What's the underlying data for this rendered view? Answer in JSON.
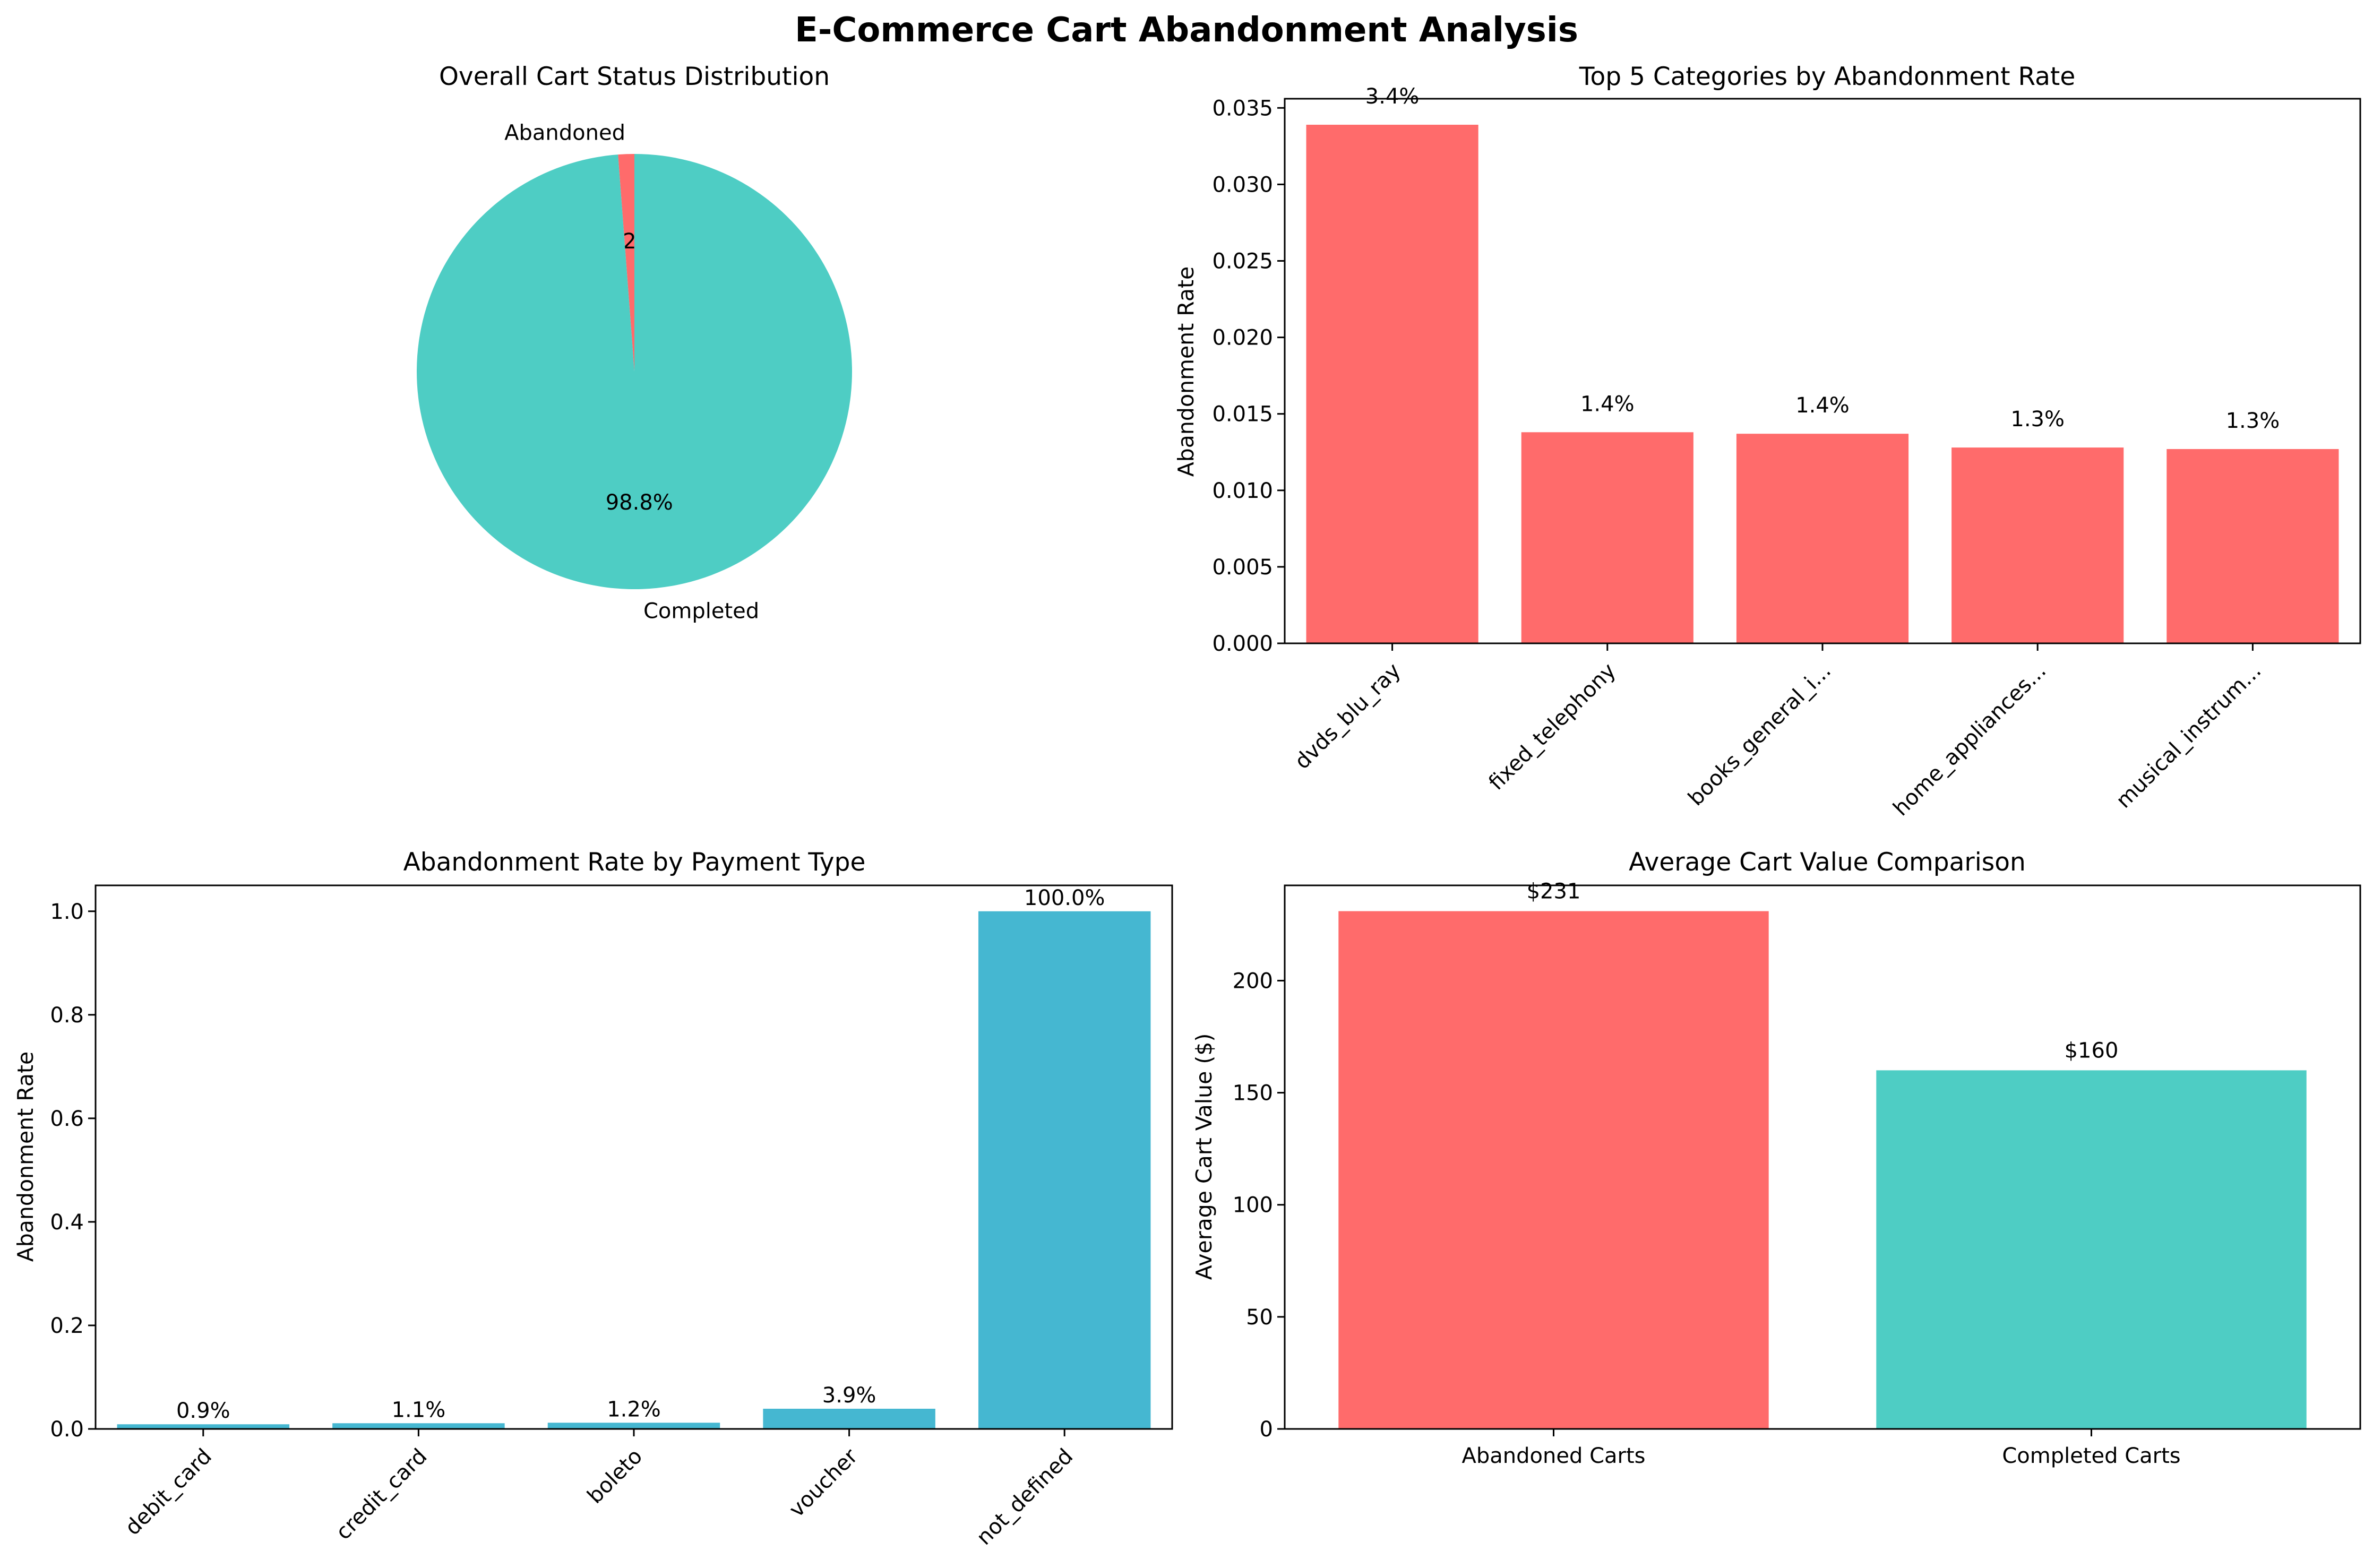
{
  "figure": {
    "title": "E-Commerce Cart Abandonment Analysis"
  },
  "chart_data": [
    {
      "type": "pie",
      "title": "Overall Cart Status Distribution",
      "labels": [
        "Abandoned",
        "Completed"
      ],
      "values": [
        1.2,
        98.8
      ],
      "value_labels": [
        "1.2%",
        "98.8%"
      ],
      "colors": [
        "#ff6b6b",
        "#4ecdc4"
      ],
      "start_angle": 90
    },
    {
      "type": "bar",
      "title": "Top 5 Categories by Abandonment Rate",
      "xlabel": "",
      "ylabel": "Abandonment Rate",
      "categories": [
        "dvds_blu_ray",
        "fixed_telephony",
        "books_general_i...",
        "home_appliances...",
        "musical_instrum..."
      ],
      "values": [
        0.0339,
        0.0138,
        0.0137,
        0.0128,
        0.0127
      ],
      "value_labels": [
        "3.4%",
        "1.4%",
        "1.4%",
        "1.3%",
        "1.3%"
      ],
      "ylim": [
        0,
        0.0356
      ],
      "yticks": [
        0.0,
        0.005,
        0.01,
        0.015,
        0.02,
        0.025,
        0.03,
        0.035
      ],
      "ytick_labels": [
        "0.000",
        "0.005",
        "0.010",
        "0.015",
        "0.020",
        "0.025",
        "0.030",
        "0.035"
      ],
      "color": "#ff6b6b",
      "grid": false
    },
    {
      "type": "bar",
      "title": "Abandonment Rate by Payment Type",
      "xlabel": "",
      "ylabel": "Abandonment Rate",
      "categories": [
        "debit_card",
        "credit_card",
        "boleto",
        "voucher",
        "not_defined"
      ],
      "values": [
        0.009,
        0.011,
        0.012,
        0.039,
        1.0
      ],
      "value_labels": [
        "0.9%",
        "1.1%",
        "1.2%",
        "3.9%",
        "100.0%"
      ],
      "ylim": [
        0,
        1.05
      ],
      "yticks": [
        0.0,
        0.2,
        0.4,
        0.6,
        0.8,
        1.0
      ],
      "ytick_labels": [
        "0.0",
        "0.2",
        "0.4",
        "0.6",
        "0.8",
        "1.0"
      ],
      "color": "#45b7d1",
      "grid": false
    },
    {
      "type": "bar",
      "title": "Average Cart Value Comparison",
      "xlabel": "",
      "ylabel": "Average Cart Value ($)",
      "categories": [
        "Abandoned Carts",
        "Completed Carts"
      ],
      "values": [
        231,
        160
      ],
      "value_labels": [
        "$231",
        "$160"
      ],
      "ylim": [
        0,
        242.5
      ],
      "yticks": [
        0,
        50,
        100,
        150,
        200
      ],
      "ytick_labels": [
        "0",
        "50",
        "100",
        "150",
        "200"
      ],
      "colors": [
        "#ff6b6b",
        "#4ecdc4"
      ],
      "grid": false
    }
  ]
}
